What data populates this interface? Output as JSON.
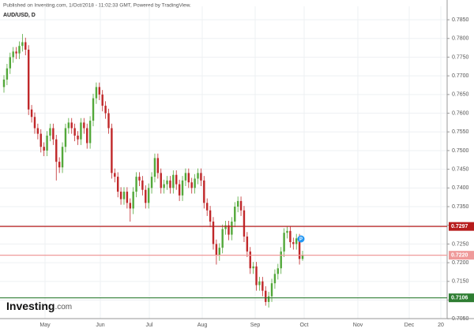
{
  "header": {
    "published": "Published on Investing.com, 1/Oct/2018 - 11:02:33 GMT, Powered by TradingView.",
    "symbol": "AUD/USD, D"
  },
  "logo": {
    "brand": "Investing",
    "suffix": ".com"
  },
  "chart_data": {
    "type": "candlestick",
    "up_color": "#53a83a",
    "down_color": "#c0282a",
    "open": [
      0.767,
      0.769,
      0.772,
      0.775,
      0.7765,
      0.776,
      0.778,
      0.779,
      0.777,
      0.761,
      0.759,
      0.756,
      0.7545,
      0.751,
      0.75,
      0.754,
      0.756,
      0.753,
      0.747,
      0.7455,
      0.751,
      0.756,
      0.7575,
      0.756,
      0.754,
      0.753,
      0.7575,
      0.756,
      0.752,
      0.758,
      0.764,
      0.767,
      0.765,
      0.762,
      0.76,
      0.756,
      0.744,
      0.743,
      0.739,
      0.737,
      0.739,
      0.736,
      0.7345,
      0.739,
      0.743,
      0.742,
      0.7395,
      0.736,
      0.74,
      0.743,
      0.748,
      0.744,
      0.74,
      0.741,
      0.742,
      0.74,
      0.7435,
      0.741,
      0.738,
      0.742,
      0.744,
      0.7415,
      0.74,
      0.7425,
      0.744,
      0.742,
      0.736,
      0.734,
      0.731,
      0.725,
      0.722,
      0.724,
      0.729,
      0.73,
      0.7275,
      0.731,
      0.735,
      0.7365,
      0.734,
      0.727,
      0.723,
      0.7185,
      0.719,
      0.714,
      0.715,
      0.7125,
      0.7095,
      0.711,
      0.7145,
      0.717,
      0.7185,
      0.723,
      0.728,
      0.7285,
      0.7255,
      0.725,
      0.7265,
      0.721
    ],
    "high": [
      0.7702,
      0.7732,
      0.7762,
      0.7777,
      0.7777,
      0.7792,
      0.7812,
      0.7802,
      0.7782,
      0.7622,
      0.7602,
      0.7572,
      0.7557,
      0.7522,
      0.7552,
      0.7572,
      0.7572,
      0.7542,
      0.7482,
      0.7522,
      0.7572,
      0.7587,
      0.7587,
      0.7572,
      0.7552,
      0.7587,
      0.7587,
      0.7572,
      0.7592,
      0.7652,
      0.7682,
      0.7682,
      0.7662,
      0.7632,
      0.7612,
      0.7572,
      0.7452,
      0.7442,
      0.7402,
      0.7402,
      0.7402,
      0.7372,
      0.7402,
      0.7442,
      0.7442,
      0.7432,
      0.7407,
      0.7412,
      0.7442,
      0.7492,
      0.7492,
      0.7452,
      0.7422,
      0.7432,
      0.7432,
      0.7447,
      0.7447,
      0.7422,
      0.7432,
      0.7452,
      0.7452,
      0.7427,
      0.7437,
      0.7452,
      0.7452,
      0.7432,
      0.7372,
      0.7352,
      0.7322,
      0.7262,
      0.7252,
      0.7302,
      0.7312,
      0.7312,
      0.7322,
      0.7362,
      0.7377,
      0.7377,
      0.7352,
      0.7282,
      0.7242,
      0.7202,
      0.7202,
      0.7162,
      0.7162,
      0.7137,
      0.7122,
      0.7157,
      0.7182,
      0.7197,
      0.7242,
      0.7292,
      0.7297,
      0.7297,
      0.7267,
      0.7277,
      0.7277,
      0.7232
    ],
    "low": [
      0.7655,
      0.7675,
      0.7705,
      0.7735,
      0.7745,
      0.7745,
      0.7765,
      0.7755,
      0.7595,
      0.7575,
      0.7545,
      0.753,
      0.7495,
      0.7485,
      0.7485,
      0.7525,
      0.7515,
      0.742,
      0.744,
      0.744,
      0.7495,
      0.7545,
      0.7545,
      0.7525,
      0.7515,
      0.7515,
      0.7545,
      0.7505,
      0.7505,
      0.7565,
      0.7625,
      0.7635,
      0.7605,
      0.7585,
      0.7545,
      0.7425,
      0.7415,
      0.7375,
      0.7355,
      0.7355,
      0.7345,
      0.731,
      0.733,
      0.7375,
      0.7405,
      0.738,
      0.7345,
      0.7345,
      0.7385,
      0.7415,
      0.7425,
      0.7385,
      0.7385,
      0.7395,
      0.7385,
      0.7385,
      0.7395,
      0.7365,
      0.7365,
      0.7405,
      0.74,
      0.7385,
      0.7385,
      0.741,
      0.7405,
      0.7345,
      0.7325,
      0.7295,
      0.7235,
      0.7195,
      0.7205,
      0.7225,
      0.7275,
      0.726,
      0.726,
      0.7295,
      0.7335,
      0.7325,
      0.7255,
      0.7215,
      0.717,
      0.717,
      0.7125,
      0.7125,
      0.711,
      0.7085,
      0.708,
      0.7095,
      0.713,
      0.7155,
      0.717,
      0.7215,
      0.7265,
      0.724,
      0.7235,
      0.7235,
      0.7195,
      0.7205
    ],
    "close": [
      0.769,
      0.772,
      0.775,
      0.7765,
      0.776,
      0.778,
      0.779,
      0.777,
      0.761,
      0.759,
      0.756,
      0.7545,
      0.751,
      0.75,
      0.754,
      0.756,
      0.753,
      0.747,
      0.7455,
      0.751,
      0.756,
      0.7575,
      0.756,
      0.754,
      0.753,
      0.7575,
      0.756,
      0.752,
      0.758,
      0.764,
      0.767,
      0.765,
      0.762,
      0.76,
      0.756,
      0.744,
      0.743,
      0.739,
      0.737,
      0.739,
      0.736,
      0.7345,
      0.739,
      0.743,
      0.742,
      0.7395,
      0.736,
      0.74,
      0.743,
      0.748,
      0.744,
      0.74,
      0.741,
      0.742,
      0.74,
      0.7435,
      0.741,
      0.738,
      0.742,
      0.744,
      0.7415,
      0.74,
      0.7425,
      0.744,
      0.742,
      0.736,
      0.734,
      0.731,
      0.725,
      0.722,
      0.724,
      0.729,
      0.73,
      0.7275,
      0.731,
      0.735,
      0.7365,
      0.734,
      0.727,
      0.723,
      0.7185,
      0.719,
      0.714,
      0.715,
      0.7125,
      0.7095,
      0.711,
      0.7145,
      0.717,
      0.7185,
      0.723,
      0.728,
      0.7285,
      0.7255,
      0.725,
      0.7265,
      0.721,
      0.722
    ],
    "xticks": [
      "May",
      "Jun",
      "Jul",
      "Aug",
      "Sep",
      "Oct",
      "Nov",
      "Dec",
      "20"
    ],
    "ylim": [
      0.7042,
      0.7886
    ],
    "yticks": [
      {
        "value": 0.785,
        "label": "0.7850"
      },
      {
        "value": 0.78,
        "label": "0.7800"
      },
      {
        "value": 0.775,
        "label": "0.7750"
      },
      {
        "value": 0.77,
        "label": "0.7700"
      },
      {
        "value": 0.765,
        "label": "0.7650"
      },
      {
        "value": 0.76,
        "label": "0.7600"
      },
      {
        "value": 0.755,
        "label": "0.7550"
      },
      {
        "value": 0.75,
        "label": "0.7500"
      },
      {
        "value": 0.745,
        "label": "0.7450"
      },
      {
        "value": 0.74,
        "label": "0.7400"
      },
      {
        "value": 0.735,
        "label": "0.7350"
      },
      {
        "value": 0.73,
        "label": "0.7300"
      },
      {
        "value": 0.725,
        "label": "0.7250"
      },
      {
        "value": 0.72,
        "label": "0.7200"
      },
      {
        "value": 0.715,
        "label": "0.7150"
      },
      {
        "value": 0.71,
        "label": "0.7100"
      },
      {
        "value": 0.705,
        "label": "0.7050"
      }
    ],
    "grid": true,
    "levels": [
      {
        "value": 0.7297,
        "color": "#b71c1c"
      },
      {
        "value": {
          "value": 0.722,
          "label": "0.7220"
        },
        "color": "#ef9a9a"
      },
      {
        "value": 0.7106,
        "color": "#2e7d32"
      }
    ],
    "annotation": "P"
  }
}
